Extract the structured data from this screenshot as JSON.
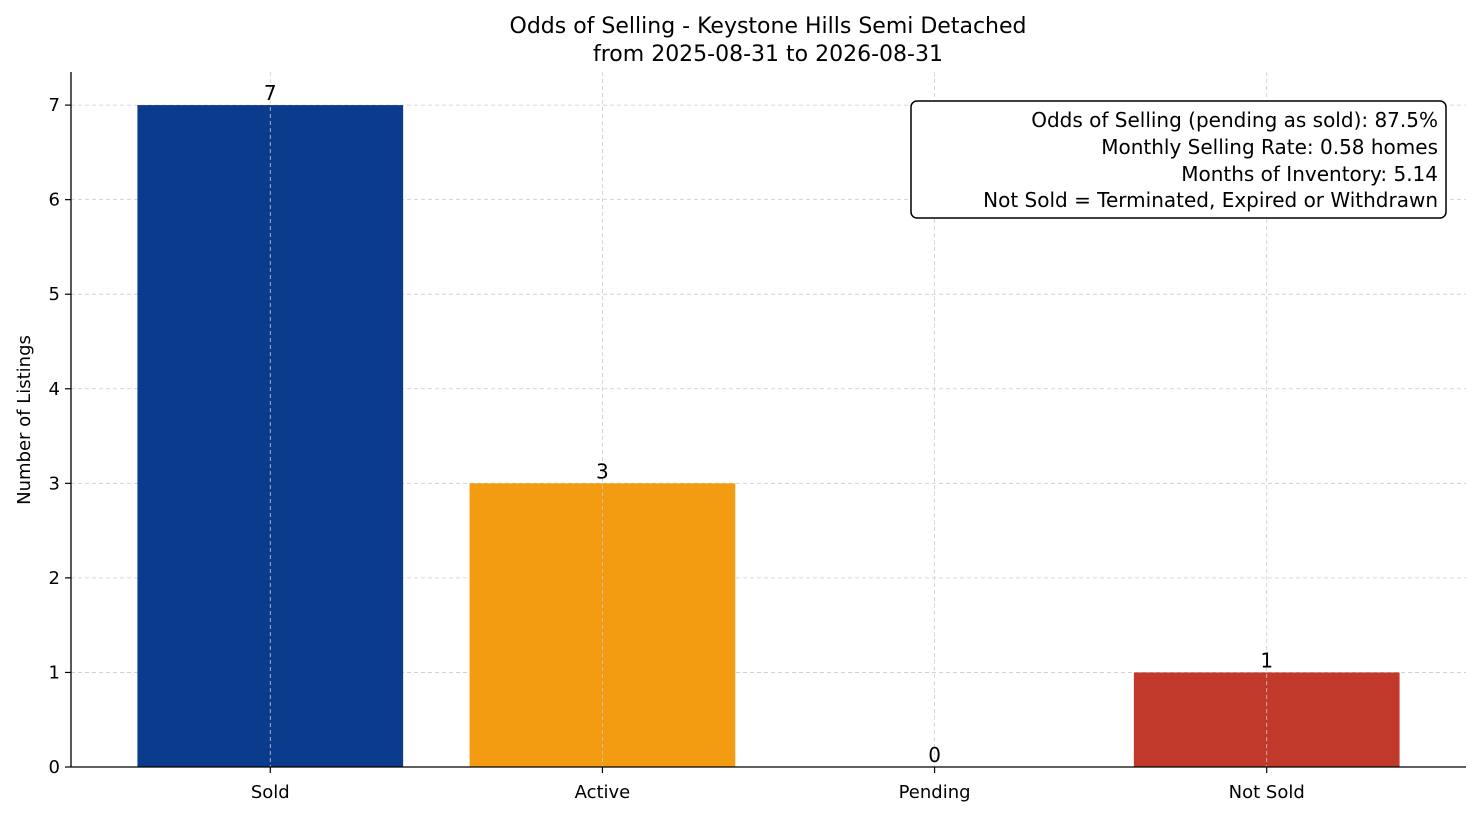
{
  "chart_data": {
    "type": "bar",
    "title": "Odds of Selling - Keystone Hills Semi Detached",
    "subtitle": "from 2025-08-31 to 2026-08-31",
    "xlabel": "",
    "ylabel": "Number of Listings",
    "categories": [
      "Sold",
      "Active",
      "Pending",
      "Not Sold"
    ],
    "values": [
      7,
      3,
      0,
      1
    ],
    "colors": [
      "#0b3b8c",
      "#f39c12",
      "#f39c12",
      "#c0392b"
    ],
    "ylim": [
      0,
      7.35
    ],
    "yticks": [
      0,
      1,
      2,
      3,
      4,
      5,
      6,
      7
    ],
    "grid": true,
    "info_box": {
      "placement": "top-right",
      "lines": [
        "Odds of Selling (pending as sold): 87.5%",
        "Monthly Selling Rate: 0.58 homes",
        "Months of Inventory: 5.14",
        "Not Sold = Terminated, Expired or Withdrawn"
      ]
    }
  }
}
